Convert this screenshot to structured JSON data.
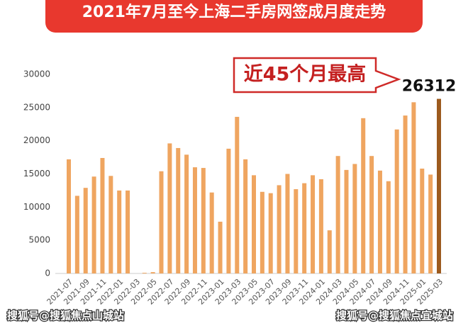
{
  "chart_data": {
    "type": "bar",
    "title": "2021年7月至今上海二手房网签成月度走势",
    "annotation": "近45个月最高",
    "watermarks": [
      "搜狐号@搜狐焦点山城站",
      "搜狐号@搜狐焦点宜城站"
    ],
    "categories": [
      "2021-07",
      null,
      "2021-09",
      null,
      "2021-11",
      null,
      "2022-01",
      null,
      "2022-03",
      null,
      "2022-05",
      null,
      "2022-07",
      null,
      "2022-09",
      null,
      "2022-11",
      null,
      "2023-01",
      null,
      "2023-03",
      null,
      "2023-05",
      null,
      "2023-07",
      null,
      "2023-09",
      null,
      "2023-11",
      null,
      "2024-01",
      null,
      "2024-03",
      null,
      "2024-05",
      null,
      "2024-07",
      null,
      "2024-09",
      null,
      "2024-11",
      null,
      "2025-01",
      null,
      "2025-03"
    ],
    "values": [
      17200,
      11700,
      12900,
      14600,
      17400,
      14700,
      12500,
      12500,
      0,
      100,
      200,
      15400,
      19600,
      18900,
      17900,
      16000,
      15900,
      12200,
      7800,
      18800,
      23600,
      17200,
      14800,
      12300,
      12100,
      13300,
      15000,
      12700,
      13600,
      14800,
      14200,
      6500,
      17700,
      15600,
      16500,
      23400,
      17700,
      15500,
      13900,
      21700,
      23800,
      25800,
      15800,
      14900,
      26312
    ],
    "color": "#efa560",
    "highlight_color": "#9c5a1e",
    "ylim": [
      0,
      30000
    ],
    "yticks": [
      0,
      5000,
      10000,
      15000,
      20000,
      25000,
      30000
    ],
    "grid": false
  }
}
